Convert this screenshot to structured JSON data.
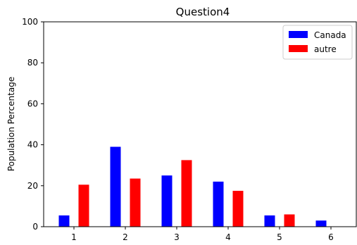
{
  "chart_data": {
    "type": "bar",
    "title": "Question4",
    "xlabel": "",
    "ylabel": "Population Percentage",
    "categories": [
      "1",
      "2",
      "3",
      "4",
      "5",
      "6"
    ],
    "series": [
      {
        "name": "Canada",
        "color": "#0000ff",
        "values": [
          5.5,
          39,
          25,
          22,
          5.5,
          3
        ]
      },
      {
        "name": "autre",
        "color": "#ff0000",
        "values": [
          20.5,
          23.5,
          32.5,
          17.5,
          6,
          0
        ]
      }
    ],
    "ylim": [
      0,
      100
    ],
    "yticks": [
      0,
      20,
      40,
      60,
      80,
      100
    ],
    "grid": false,
    "legend_position": "top-right"
  }
}
